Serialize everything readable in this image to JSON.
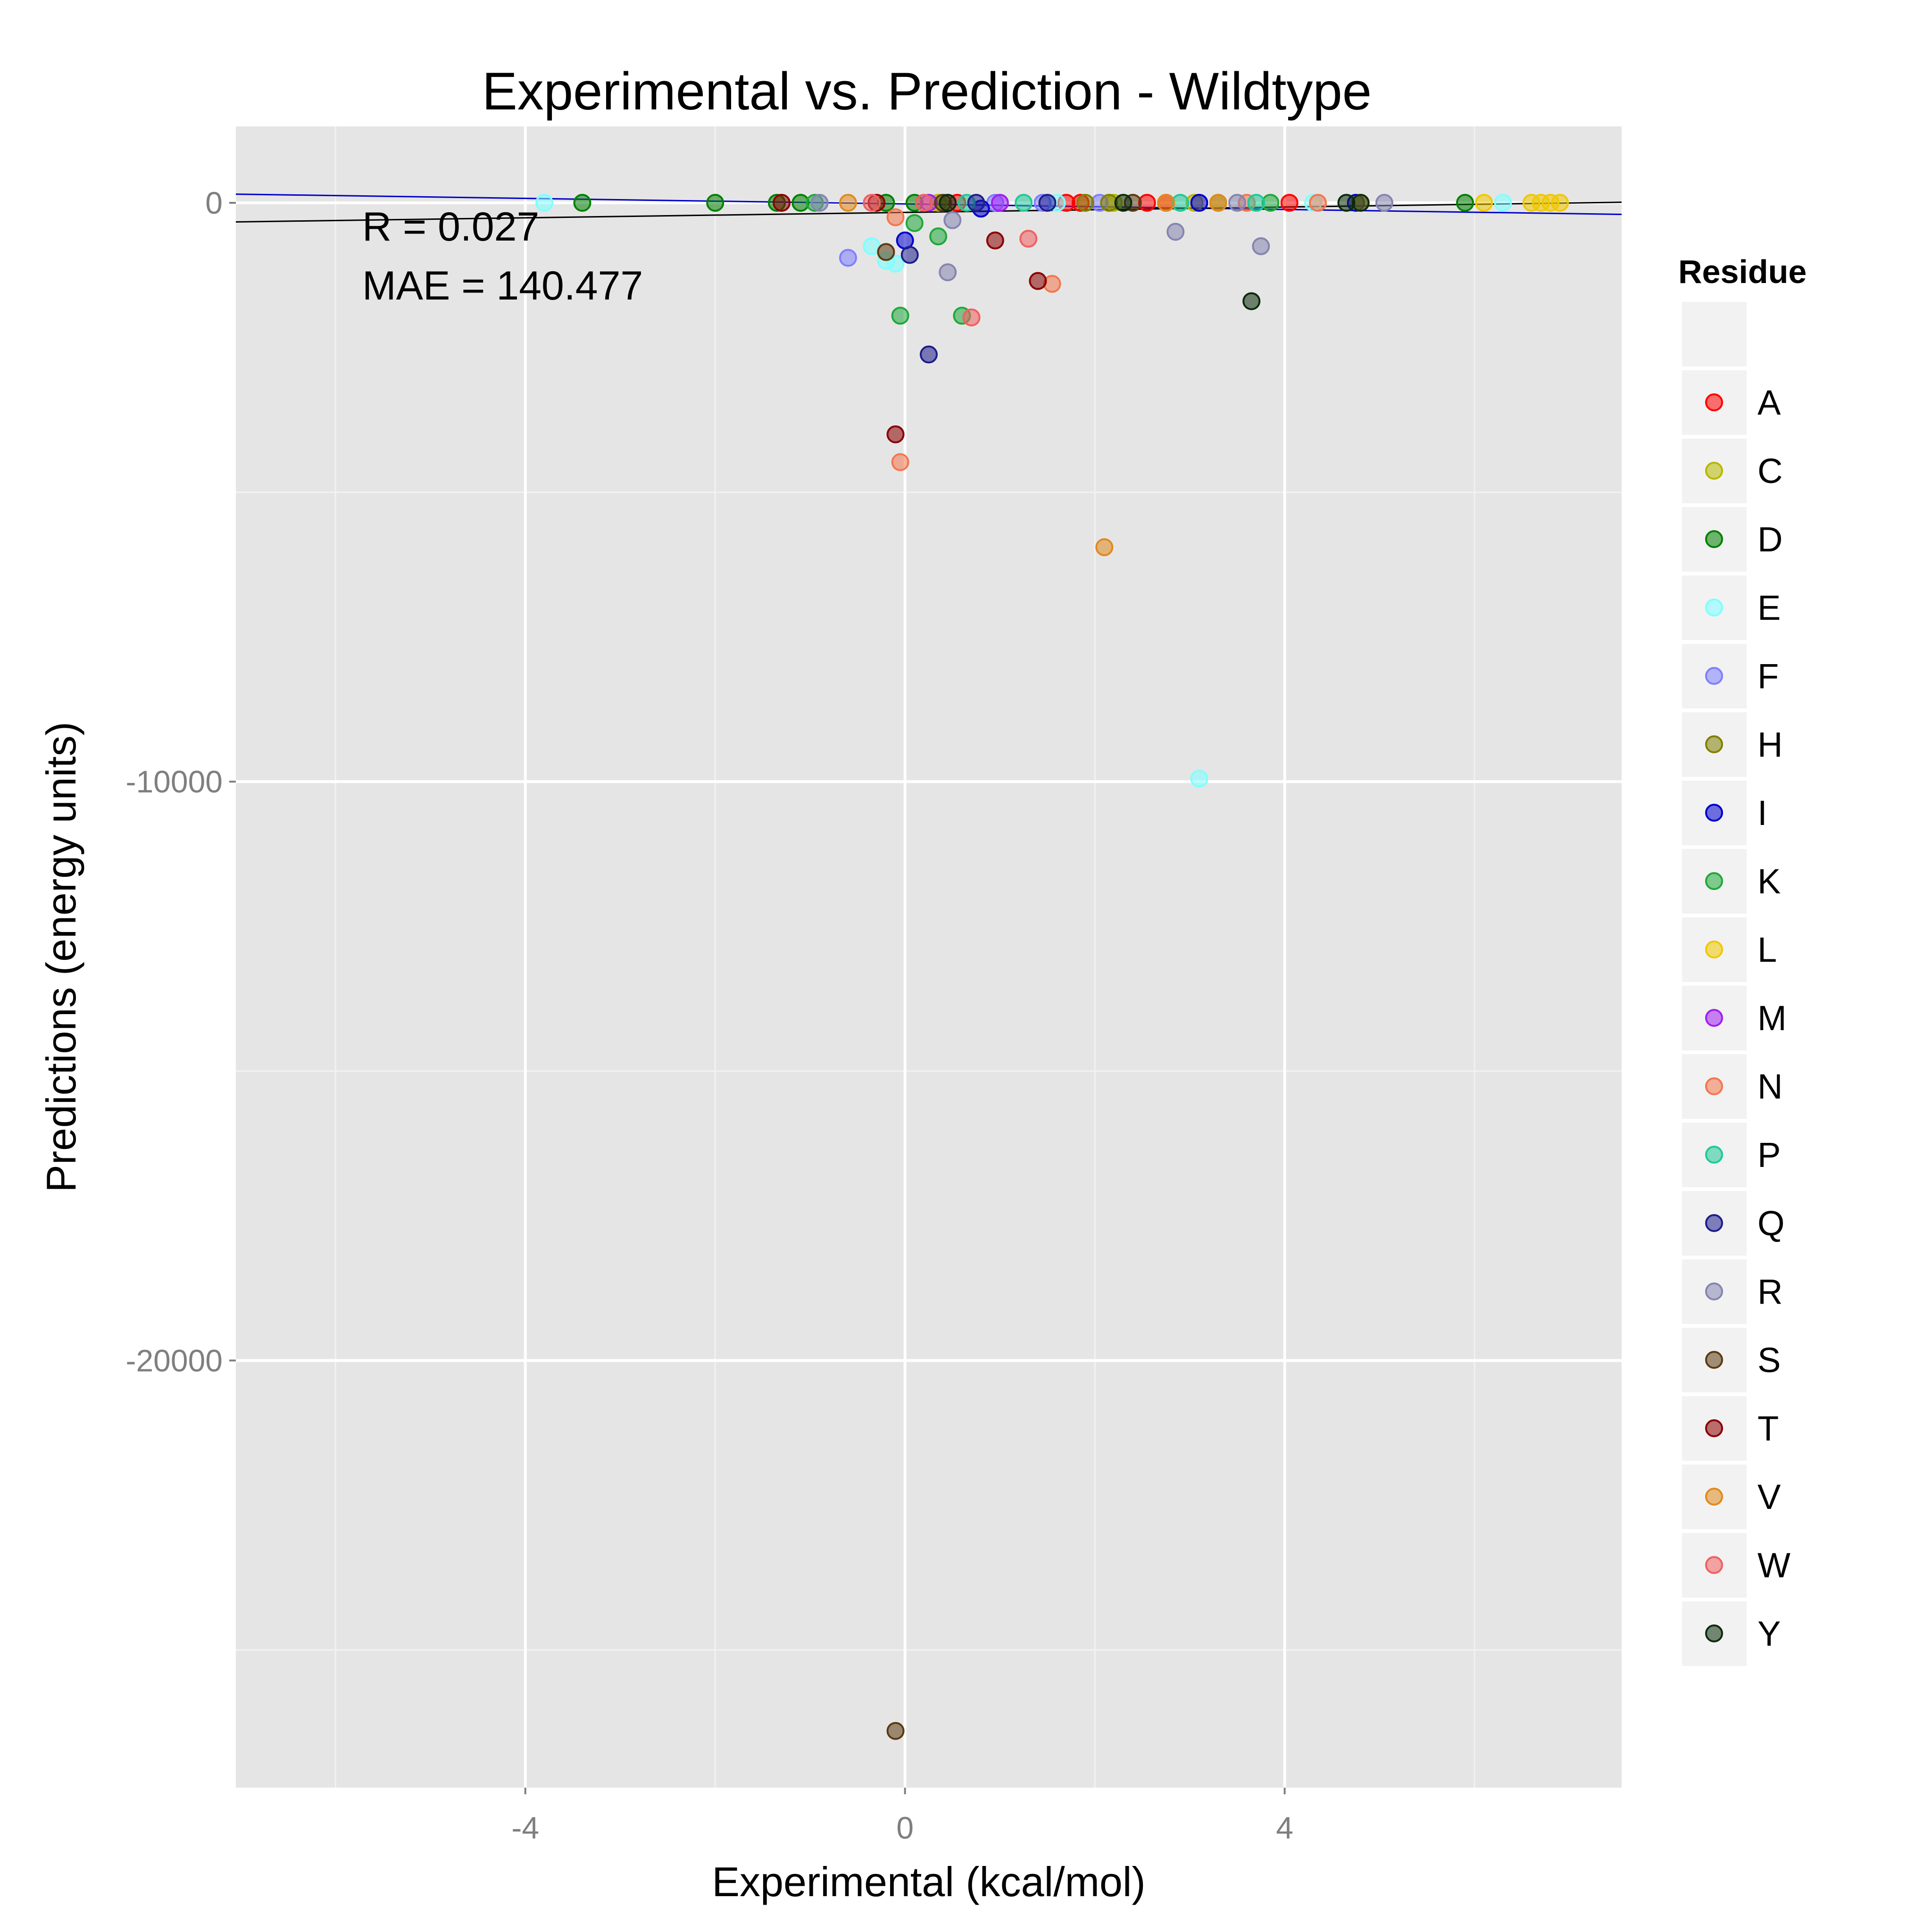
{
  "chart_data": {
    "type": "scatter",
    "title": "Experimental vs. Prediction - Wildtype",
    "xlabel": "Experimental (kcal/mol)",
    "ylabel": "Predictions (energy units)",
    "xlim": [
      -7.05,
      7.55
    ],
    "ylim": [
      -27380,
      1320
    ],
    "x_ticks": [
      -4,
      0,
      4
    ],
    "x_tick_labels": [
      "-4",
      "0",
      "4"
    ],
    "y_ticks": [
      0,
      -10000,
      -20000
    ],
    "y_tick_labels": [
      "0",
      "-10000",
      "-20000"
    ],
    "grid": true,
    "legend_position": "right",
    "annotations": [
      "R = 0.027",
      "MAE = 140.477"
    ],
    "lines": [
      {
        "color": "#0000cc",
        "x": [
          -7.05,
          7.55
        ],
        "y": [
          150,
          -200
        ]
      },
      {
        "color": "#000000",
        "x": [
          -7.05,
          7.55
        ],
        "y": [
          -330,
          10
        ]
      }
    ],
    "legend": {
      "title": "Residue",
      "entries": [
        {
          "label": "",
          "color": ""
        },
        {
          "label": "A",
          "color": "#ff0000"
        },
        {
          "label": "C",
          "color": "#b8b800"
        },
        {
          "label": "D",
          "color": "#008000"
        },
        {
          "label": "E",
          "color": "#80ffff"
        },
        {
          "label": "F",
          "color": "#7f7fff"
        },
        {
          "label": "H",
          "color": "#808000"
        },
        {
          "label": "I",
          "color": "#0000cc"
        },
        {
          "label": "K",
          "color": "#1fa83a"
        },
        {
          "label": "L",
          "color": "#f0c800"
        },
        {
          "label": "M",
          "color": "#a020f0"
        },
        {
          "label": "N",
          "color": "#f4764f"
        },
        {
          "label": "P",
          "color": "#20c997"
        },
        {
          "label": "Q",
          "color": "#1e1e8c"
        },
        {
          "label": "R",
          "color": "#8585b0"
        },
        {
          "label": "S",
          "color": "#5c3a10"
        },
        {
          "label": "T",
          "color": "#8b0000"
        },
        {
          "label": "V",
          "color": "#e08a1e"
        },
        {
          "label": "W",
          "color": "#f06060"
        },
        {
          "label": "Y",
          "color": "#0b2b0b"
        }
      ]
    },
    "series": [
      {
        "label": "A",
        "points": [
          [
            1.85,
            0
          ],
          [
            2.55,
            0
          ],
          [
            2.75,
            0
          ],
          [
            4.05,
            0
          ],
          [
            1.7,
            0
          ],
          [
            0.55,
            0
          ]
        ]
      },
      {
        "label": "C",
        "points": [
          [
            3.05,
            0
          ],
          [
            0.35,
            0
          ],
          [
            2.2,
            0
          ]
        ]
      },
      {
        "label": "D",
        "points": [
          [
            -3.4,
            0
          ],
          [
            -2.0,
            0
          ],
          [
            -1.35,
            0
          ],
          [
            -1.1,
            0
          ],
          [
            0.1,
            0
          ],
          [
            5.9,
            0
          ],
          [
            -0.2,
            0
          ]
        ]
      },
      {
        "label": "E",
        "points": [
          [
            -3.8,
            0
          ],
          [
            -0.35,
            -750
          ],
          [
            -0.2,
            -1000
          ],
          [
            -0.1,
            -1050
          ],
          [
            3.1,
            -9950
          ],
          [
            6.3,
            0
          ],
          [
            4.3,
            0
          ],
          [
            1.6,
            0
          ]
        ]
      },
      {
        "label": "F",
        "points": [
          [
            -0.6,
            -950
          ],
          [
            1.45,
            0
          ],
          [
            2.05,
            0
          ],
          [
            0.95,
            0
          ]
        ]
      },
      {
        "label": "H",
        "points": [
          [
            2.15,
            0
          ],
          [
            3.3,
            0
          ],
          [
            1.9,
            0
          ]
        ]
      },
      {
        "label": "I",
        "points": [
          [
            0.8,
            -100
          ],
          [
            0.0,
            -650
          ],
          [
            3.1,
            0
          ],
          [
            4.75,
            0
          ]
        ]
      },
      {
        "label": "K",
        "points": [
          [
            0.35,
            -580
          ],
          [
            -0.05,
            -1950
          ],
          [
            0.6,
            -1950
          ],
          [
            0.1,
            -350
          ],
          [
            3.85,
            0
          ],
          [
            -0.95,
            0
          ]
        ]
      },
      {
        "label": "L",
        "points": [
          [
            6.6,
            0
          ],
          [
            6.8,
            0
          ],
          [
            6.9,
            0
          ],
          [
            6.7,
            0
          ],
          [
            6.1,
            0
          ],
          [
            4.8,
            0
          ]
        ]
      },
      {
        "label": "M",
        "points": [
          [
            1.0,
            0
          ],
          [
            0.25,
            0
          ]
        ]
      },
      {
        "label": "N",
        "points": [
          [
            1.55,
            -1400
          ],
          [
            -0.05,
            -4480
          ],
          [
            -0.1,
            -250
          ],
          [
            4.35,
            0
          ],
          [
            3.6,
            0
          ]
        ]
      },
      {
        "label": "P",
        "points": [
          [
            1.25,
            0
          ],
          [
            2.9,
            0
          ],
          [
            3.7,
            0
          ],
          [
            0.65,
            0
          ]
        ]
      },
      {
        "label": "Q",
        "points": [
          [
            0.25,
            -2620
          ],
          [
            0.05,
            -900
          ],
          [
            0.75,
            0
          ],
          [
            1.5,
            0
          ]
        ]
      },
      {
        "label": "R",
        "points": [
          [
            2.85,
            -500
          ],
          [
            3.75,
            -750
          ],
          [
            0.45,
            -1200
          ],
          [
            0.5,
            -300
          ],
          [
            5.05,
            0
          ],
          [
            -0.9,
            0
          ],
          [
            3.5,
            0
          ]
        ]
      },
      {
        "label": "S",
        "points": [
          [
            -0.1,
            -26400
          ],
          [
            -0.2,
            -850
          ],
          [
            0.4,
            0
          ],
          [
            2.4,
            0
          ]
        ]
      },
      {
        "label": "T",
        "points": [
          [
            1.4,
            -1350
          ],
          [
            -0.1,
            -4000
          ],
          [
            0.95,
            -650
          ],
          [
            -1.3,
            0
          ],
          [
            -0.3,
            0
          ]
        ]
      },
      {
        "label": "V",
        "points": [
          [
            2.1,
            -5950
          ],
          [
            -0.6,
            0
          ],
          [
            3.3,
            0
          ],
          [
            2.75,
            0
          ]
        ]
      },
      {
        "label": "W",
        "points": [
          [
            0.7,
            -1980
          ],
          [
            1.3,
            -620
          ],
          [
            -0.35,
            0
          ],
          [
            0.2,
            0
          ]
        ]
      },
      {
        "label": "Y",
        "points": [
          [
            3.65,
            -1700
          ],
          [
            4.65,
            0
          ],
          [
            4.8,
            0
          ],
          [
            0.45,
            0
          ],
          [
            2.3,
            0
          ]
        ]
      }
    ]
  }
}
